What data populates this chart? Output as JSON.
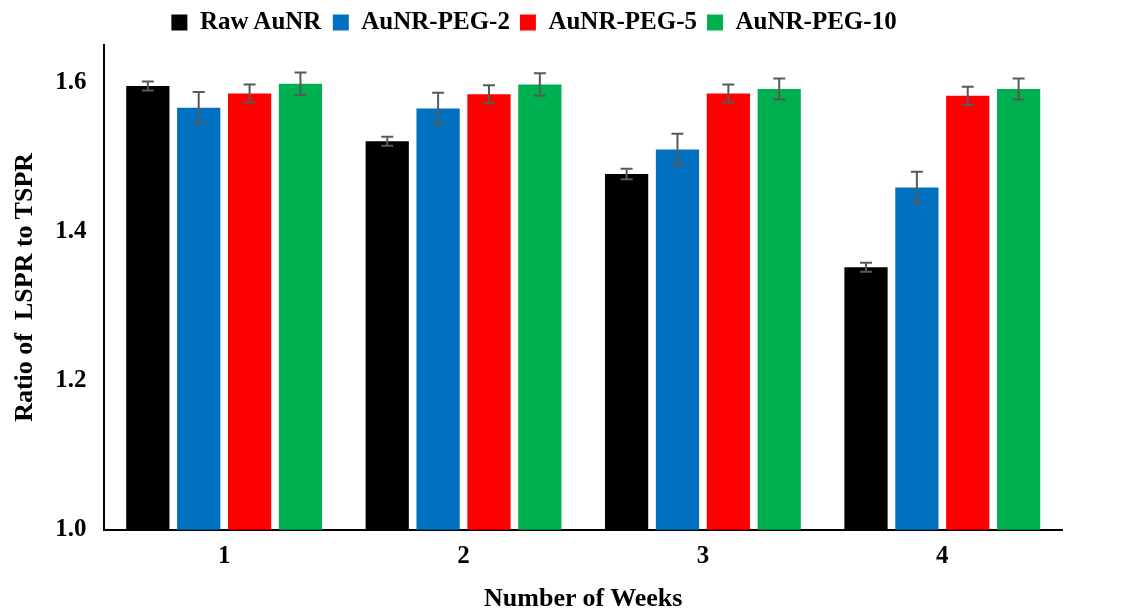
{
  "chart_data": {
    "type": "bar",
    "xlabel": "Number of Weeks",
    "ylabel": "Ratio of  LSPR to TSPR",
    "categories": [
      "1",
      "2",
      "3",
      "4"
    ],
    "series": [
      {
        "name": "Raw AuNR",
        "color": "#000000",
        "values": [
          1.595,
          1.521,
          1.477,
          1.352
        ],
        "errors": [
          0.006,
          0.006,
          0.007,
          0.006
        ]
      },
      {
        "name": "AuNR-PEG-2",
        "color": "#0070c0",
        "values": [
          1.566,
          1.565,
          1.51,
          1.459
        ],
        "errors": [
          0.021,
          0.021,
          0.021,
          0.021
        ]
      },
      {
        "name": "AuNR-PEG-5",
        "color": "#ff0000",
        "values": [
          1.585,
          1.584,
          1.585,
          1.582
        ],
        "errors": [
          0.012,
          0.012,
          0.012,
          0.012
        ]
      },
      {
        "name": "AuNR-PEG-10",
        "color": "#00b050",
        "values": [
          1.598,
          1.597,
          1.591,
          1.591
        ],
        "errors": [
          0.015,
          0.015,
          0.014,
          0.014
        ]
      }
    ],
    "ylim": [
      1.0,
      1.65
    ],
    "yticks": [
      {
        "value": 1,
        "label": "1.0"
      },
      {
        "value": 1.2,
        "label": "1.2"
      },
      {
        "value": 1.4,
        "label": "1.4"
      },
      {
        "value": 1.6,
        "label": "1.6"
      }
    ],
    "grid": false,
    "legend": "top"
  }
}
